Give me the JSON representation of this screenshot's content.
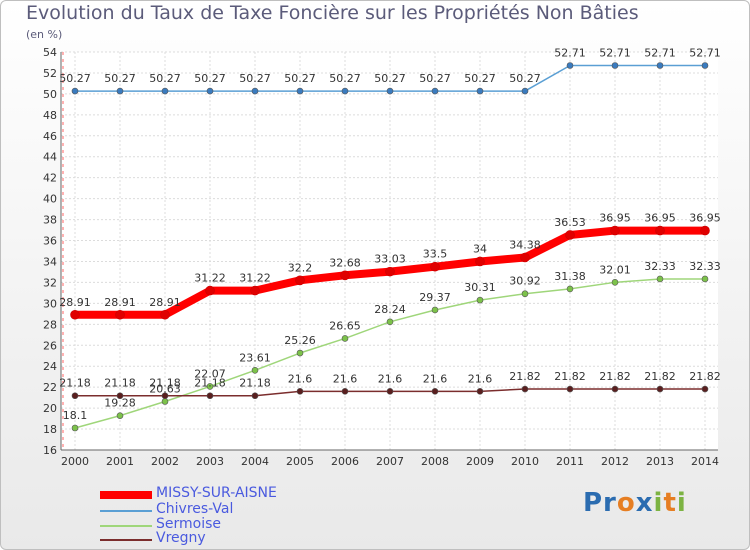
{
  "chart_data": {
    "type": "line",
    "title": "Evolution du Taux de Taxe Foncière sur les Propriétés Non Bâties",
    "ylabel": "(en %)",
    "xlabel": "",
    "ylim": [
      16,
      54
    ],
    "ytick_step": 2,
    "x": [
      "2000",
      "2001",
      "2002",
      "2003",
      "2004",
      "2005",
      "2006",
      "2007",
      "2008",
      "2009",
      "2010",
      "2011",
      "2012",
      "2013",
      "2014"
    ],
    "series": [
      {
        "name": "Chivres-Val",
        "color": "#5a9fd4",
        "marker": "#3a7bbf",
        "width": 1.5,
        "values": [
          50.27,
          50.27,
          50.27,
          50.27,
          50.27,
          50.27,
          50.27,
          50.27,
          50.27,
          50.27,
          50.27,
          52.71,
          52.71,
          52.71,
          52.71
        ],
        "labels": [
          "50.27",
          "50.27",
          "50.27",
          "50.27",
          "50.27",
          "50.27",
          "50.27",
          "50.27",
          "50.27",
          "50.27",
          "50.27",
          "52.71",
          "52.71",
          "52.71",
          "52.71"
        ]
      },
      {
        "name": "Sermoise",
        "color": "#9fd67a",
        "marker": "#7cc24a",
        "width": 1.5,
        "values": [
          18.1,
          19.28,
          20.63,
          22.07,
          23.61,
          25.26,
          26.65,
          28.24,
          29.37,
          30.31,
          30.92,
          31.38,
          32.01,
          32.33,
          32.33
        ],
        "labels": [
          "18.1",
          "19.28",
          "20.63",
          "22.07",
          "23.61",
          "25.26",
          "26.65",
          "28.24",
          "29.37",
          "30.31",
          "30.92",
          "31.38",
          "32.01",
          "32.33",
          "32.33"
        ]
      },
      {
        "name": "Vregny",
        "color": "#7b2d2d",
        "marker": "#5a1f1f",
        "width": 1.5,
        "values": [
          21.18,
          21.18,
          21.18,
          21.18,
          21.18,
          21.6,
          21.6,
          21.6,
          21.6,
          21.6,
          21.82,
          21.82,
          21.82,
          21.82,
          21.82
        ],
        "labels": [
          "21.18",
          "21.18",
          "21.18",
          "21.18",
          "21.18",
          "21.6",
          "21.6",
          "21.6",
          "21.6",
          "21.6",
          "21.82",
          "21.82",
          "21.82",
          "21.82",
          "21.82"
        ]
      },
      {
        "name": "MISSY-SUR-AISNE",
        "color": "#ff0000",
        "marker": "#e00000",
        "width": 8,
        "values": [
          28.91,
          28.91,
          28.91,
          31.22,
          31.22,
          32.2,
          32.68,
          33.03,
          33.5,
          34,
          34.38,
          36.53,
          36.95,
          36.95,
          36.95
        ],
        "labels": [
          "28.91",
          "28.91",
          "28.91",
          "31.22",
          "31.22",
          "32.2",
          "32.68",
          "33.03",
          "33.5",
          "34",
          "34.38",
          "36.53",
          "36.95",
          "36.95",
          "36.95"
        ]
      }
    ],
    "legend": [
      {
        "name": "MISSY-SUR-AISNE",
        "color": "#ff0000",
        "text_color": "#4a5adf",
        "thick": true
      },
      {
        "name": "Chivres-Val",
        "color": "#5a9fd4",
        "text_color": "#4a5adf",
        "thick": false
      },
      {
        "name": "Sermoise",
        "color": "#9fd67a",
        "text_color": "#4a5adf",
        "thick": false
      },
      {
        "name": "Vregny",
        "color": "#7b2d2d",
        "text_color": "#4a5adf",
        "thick": false
      }
    ]
  },
  "logo": {
    "text": "Proxiti"
  }
}
